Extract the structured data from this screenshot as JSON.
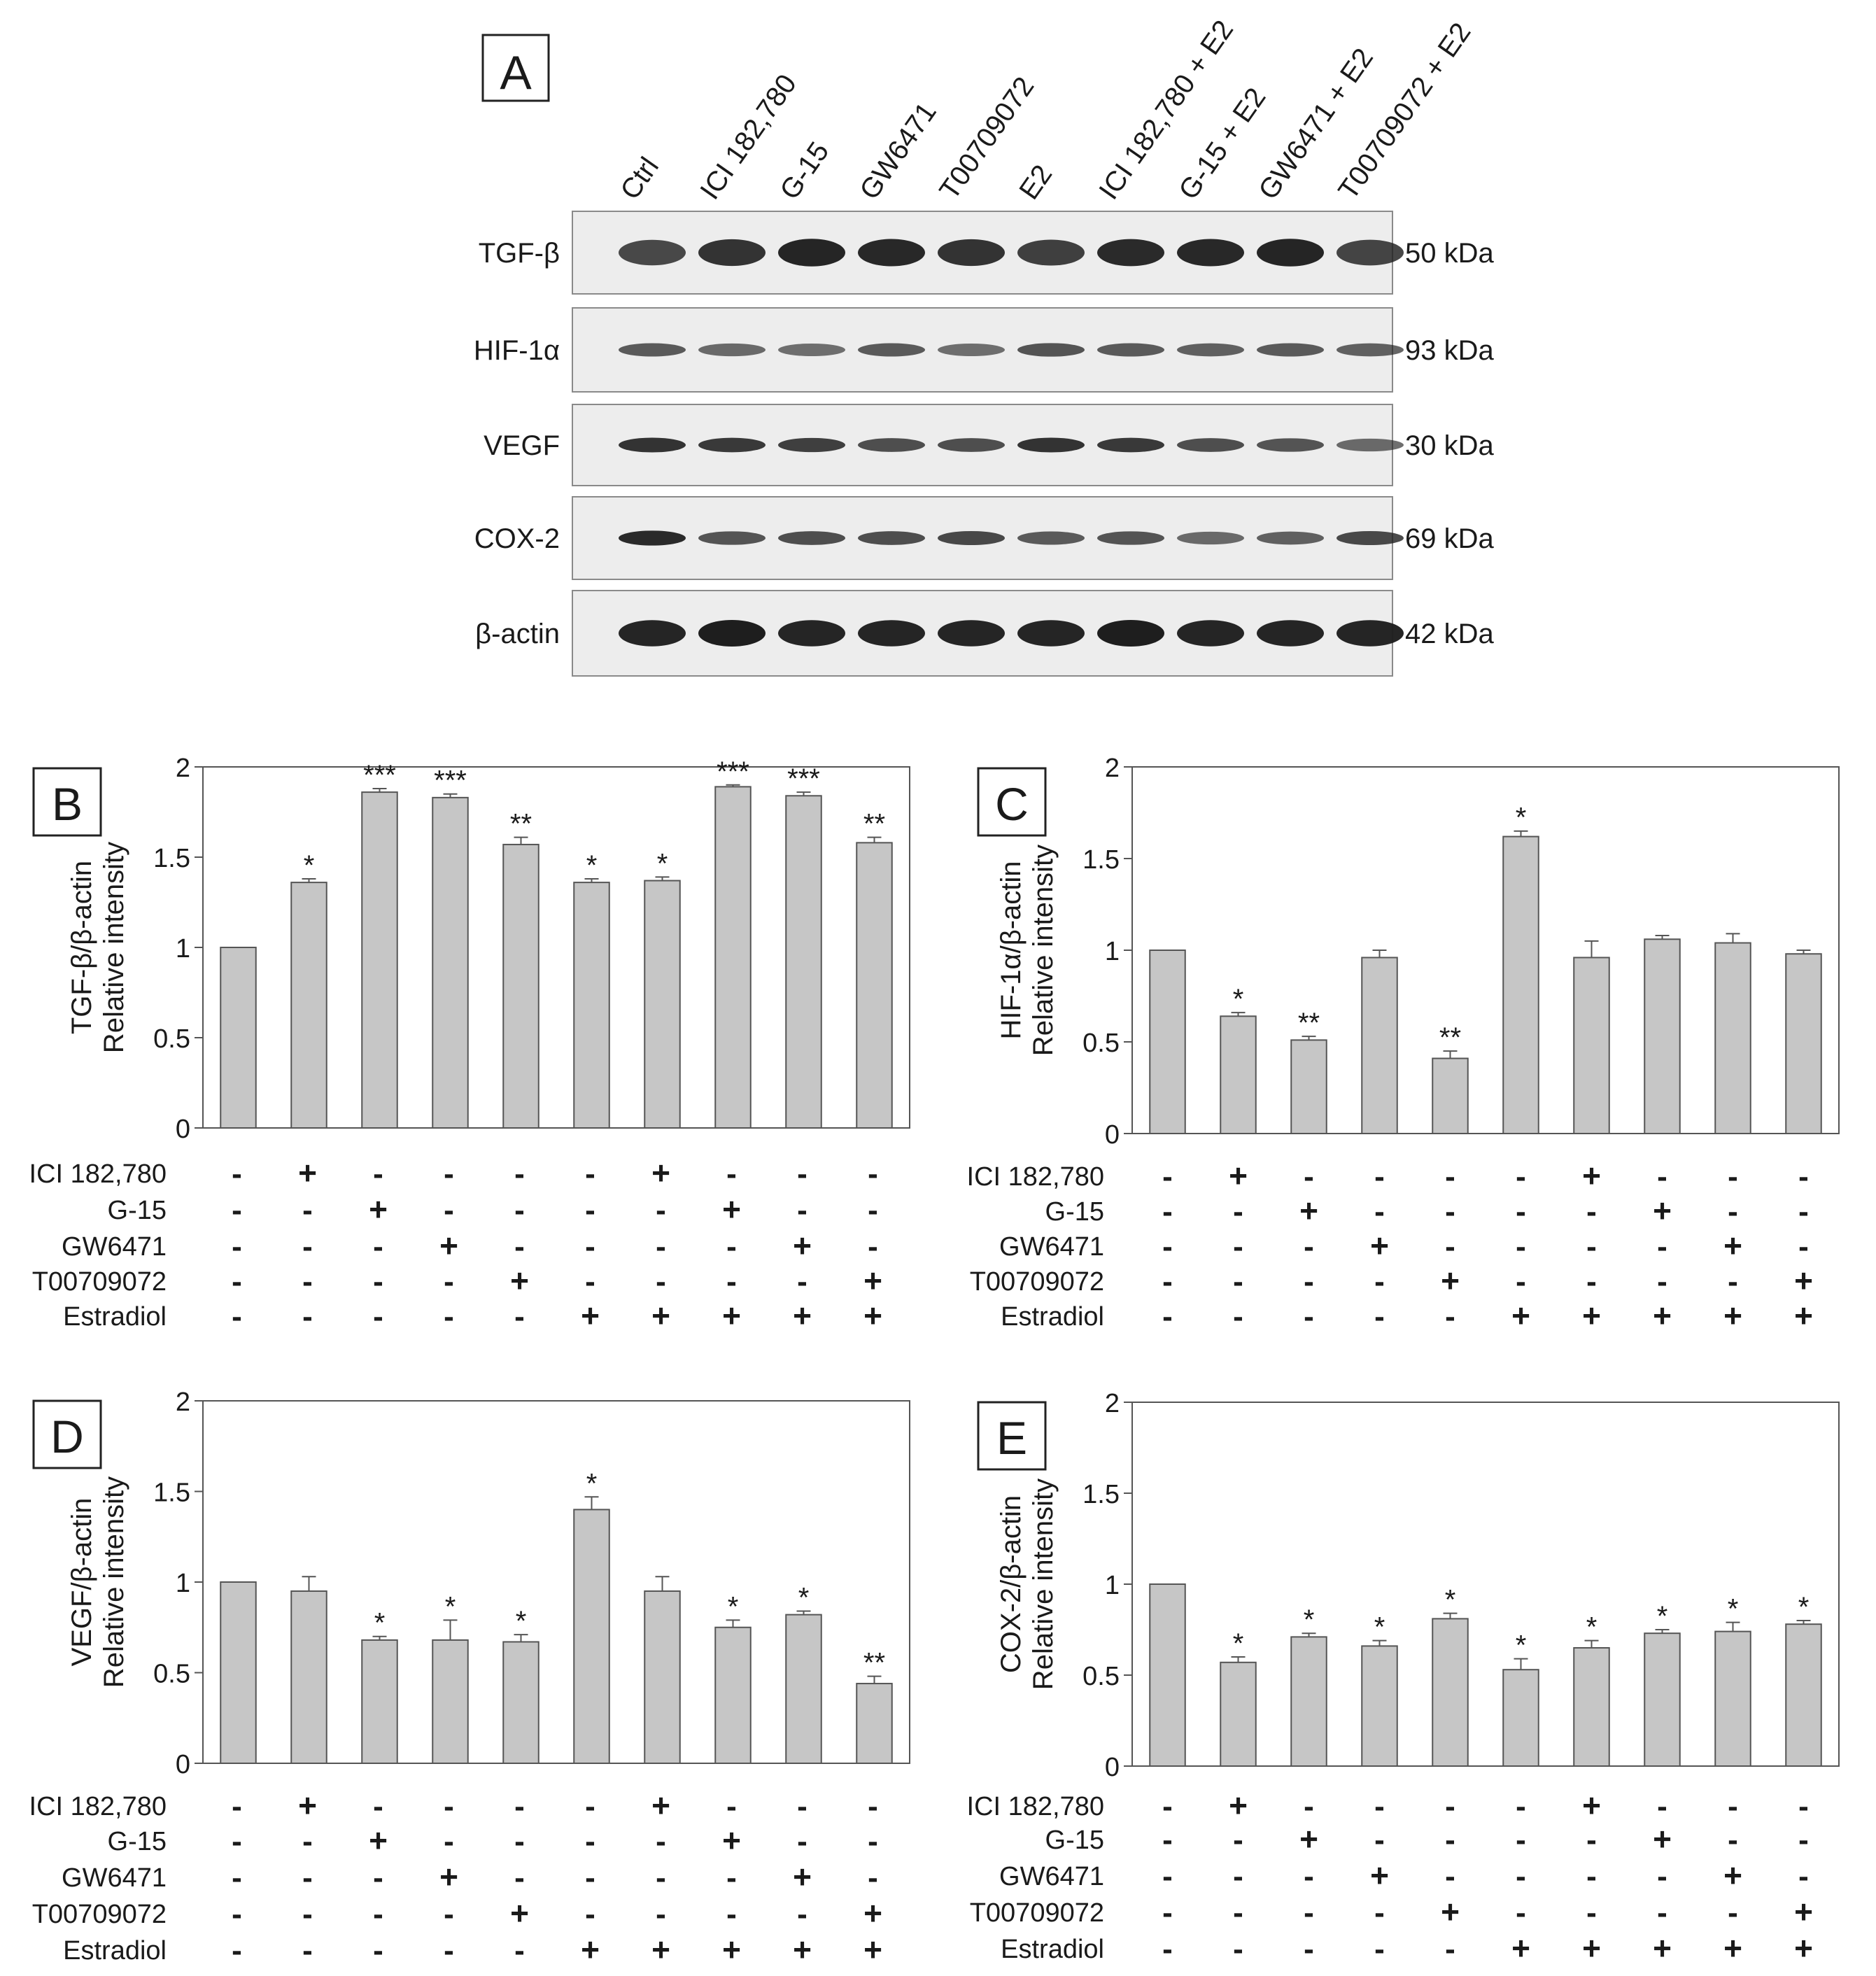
{
  "panel_a": {
    "label": "A",
    "lanes": [
      "Ctrl",
      "ICI 182,780",
      "G-15",
      "GW6471",
      "T00709072",
      "E2",
      "ICI 182,780 + E2",
      "G-15 + E2",
      "GW6471 + E2",
      "T00709072 + E2"
    ],
    "blots": [
      {
        "protein": "TGF-β",
        "size": "50 kDa",
        "intensity": [
          0.7,
          0.85,
          0.95,
          0.92,
          0.85,
          0.75,
          0.9,
          0.92,
          0.95,
          0.72
        ]
      },
      {
        "protein": "HIF-1α",
        "size": "93 kDa",
        "intensity": [
          0.55,
          0.45,
          0.4,
          0.55,
          0.4,
          0.6,
          0.55,
          0.5,
          0.55,
          0.5
        ]
      },
      {
        "protein": "VEGF",
        "size": "30 kDa",
        "intensity": [
          0.85,
          0.8,
          0.75,
          0.65,
          0.65,
          0.85,
          0.8,
          0.65,
          0.6,
          0.45
        ]
      },
      {
        "protein": "COX-2",
        "size": "69 kDa",
        "intensity": [
          0.9,
          0.6,
          0.65,
          0.65,
          0.7,
          0.55,
          0.6,
          0.45,
          0.5,
          0.7
        ]
      },
      {
        "protein": "β-actin",
        "size": "42 kDa",
        "intensity": [
          0.95,
          1.0,
          0.95,
          0.95,
          0.95,
          0.95,
          1.0,
          0.95,
          0.95,
          0.95
        ]
      }
    ]
  },
  "treatment_rows": [
    "ICI 182,780",
    "G-15",
    "GW6471",
    "T00709072",
    "Estradiol"
  ],
  "treatment_matrix": [
    [
      "-",
      "+",
      "-",
      "-",
      "-",
      "-",
      "+",
      "-",
      "-",
      "-"
    ],
    [
      "-",
      "-",
      "+",
      "-",
      "-",
      "-",
      "-",
      "+",
      "-",
      "-"
    ],
    [
      "-",
      "-",
      "-",
      "+",
      "-",
      "-",
      "-",
      "-",
      "+",
      "-"
    ],
    [
      "-",
      "-",
      "-",
      "-",
      "+",
      "-",
      "-",
      "-",
      "-",
      "+"
    ],
    [
      "-",
      "-",
      "-",
      "-",
      "-",
      "+",
      "+",
      "+",
      "+",
      "+"
    ]
  ],
  "chart_data": [
    {
      "panel": "B",
      "type": "bar",
      "ylabel_line1": "TGF-β/β-actin",
      "ylabel_line2": "Relative intensity",
      "ylim": [
        0,
        2
      ],
      "yticks": [
        "0",
        "0.5",
        "1",
        "1.5",
        "2"
      ],
      "values": [
        1.0,
        1.36,
        1.86,
        1.83,
        1.57,
        1.36,
        1.37,
        1.89,
        1.84,
        1.58
      ],
      "errors": [
        0,
        0.02,
        0.02,
        0.02,
        0.04,
        0.02,
        0.02,
        0.01,
        0.02,
        0.03
      ],
      "significance": [
        "",
        "*",
        "***",
        "***",
        "**",
        "*",
        "*",
        "***",
        "***",
        "**"
      ]
    },
    {
      "panel": "C",
      "type": "bar",
      "ylabel_line1": "HIF-1α/β-actin",
      "ylabel_line2": "Relative intensity",
      "ylim": [
        0,
        2
      ],
      "yticks": [
        "0",
        "0.5",
        "1",
        "1.5",
        "2"
      ],
      "values": [
        1.0,
        0.64,
        0.51,
        0.96,
        0.41,
        1.62,
        0.96,
        1.06,
        1.04,
        0.98
      ],
      "errors": [
        0,
        0.02,
        0.02,
        0.04,
        0.04,
        0.03,
        0.09,
        0.02,
        0.05,
        0.02
      ],
      "significance": [
        "",
        "*",
        "**",
        "",
        "**",
        "*",
        "",
        "",
        "",
        ""
      ]
    },
    {
      "panel": "D",
      "type": "bar",
      "ylabel_line1": "VEGF/β-actin",
      "ylabel_line2": "Relative intensity",
      "ylim": [
        0,
        2
      ],
      "yticks": [
        "0",
        "0.5",
        "1",
        "1.5",
        "2"
      ],
      "values": [
        1.0,
        0.95,
        0.68,
        0.68,
        0.67,
        1.4,
        0.95,
        0.75,
        0.82,
        0.44
      ],
      "errors": [
        0,
        0.08,
        0.02,
        0.11,
        0.04,
        0.07,
        0.08,
        0.04,
        0.02,
        0.04
      ],
      "significance": [
        "",
        "",
        "*",
        "*",
        "*",
        "*",
        "",
        "*",
        "*",
        "**"
      ]
    },
    {
      "panel": "E",
      "type": "bar",
      "ylabel_line1": "COX-2/β-actin",
      "ylabel_line2": "Relative intensity",
      "ylim": [
        0,
        2
      ],
      "yticks": [
        "0",
        "0.5",
        "1",
        "1.5",
        "2"
      ],
      "values": [
        1.0,
        0.57,
        0.71,
        0.66,
        0.81,
        0.53,
        0.65,
        0.73,
        0.74,
        0.78
      ],
      "errors": [
        0,
        0.03,
        0.02,
        0.03,
        0.03,
        0.06,
        0.04,
        0.02,
        0.05,
        0.02
      ],
      "significance": [
        "",
        "*",
        "*",
        "*",
        "*",
        "*",
        "*",
        "*",
        "*",
        "*"
      ]
    }
  ],
  "colors": {
    "bar": "#c6c6c6",
    "bar_edge": "#555555",
    "axis": "#555555",
    "text": "#1a1a1a",
    "band": "#1e1e1e"
  }
}
